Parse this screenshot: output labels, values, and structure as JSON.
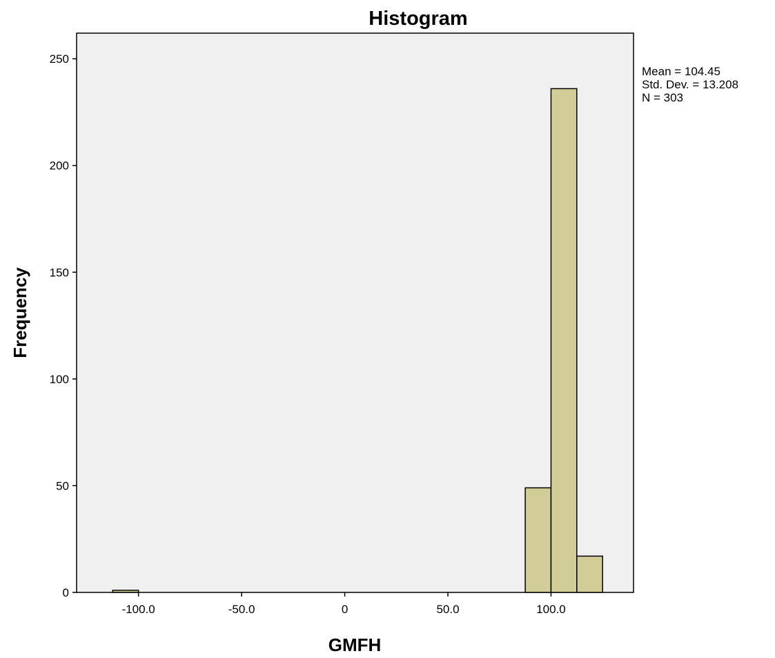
{
  "chart_data": {
    "type": "bar",
    "title": "Histogram",
    "xlabel": "GMFH",
    "ylabel": "Frequency",
    "xlim": [
      -130,
      140
    ],
    "ylim": [
      0,
      262
    ],
    "x_ticks": [
      -100,
      -50,
      0,
      50,
      100
    ],
    "x_tick_labels": [
      "-100.0",
      "-50.0",
      "0",
      "50.0",
      "100.0"
    ],
    "y_ticks": [
      0,
      50,
      100,
      150,
      200,
      250
    ],
    "y_tick_labels": [
      "0",
      "50",
      "100",
      "150",
      "200",
      "250"
    ],
    "bin_width": 12.5,
    "bins": [
      {
        "start": -112.5,
        "end": -100.0,
        "count": 1
      },
      {
        "start": 87.5,
        "end": 100.0,
        "count": 49
      },
      {
        "start": 100.0,
        "end": 112.5,
        "count": 236
      },
      {
        "start": 112.5,
        "end": 125.0,
        "count": 17
      }
    ],
    "grid": false,
    "colors": {
      "plot_background": "#f0f0f0",
      "bar_fill": "#d2cc96",
      "bar_stroke": "#000000"
    },
    "stats": [
      "Mean = 104.45",
      "Std. Dev. = 13.208",
      "N = 303"
    ]
  }
}
